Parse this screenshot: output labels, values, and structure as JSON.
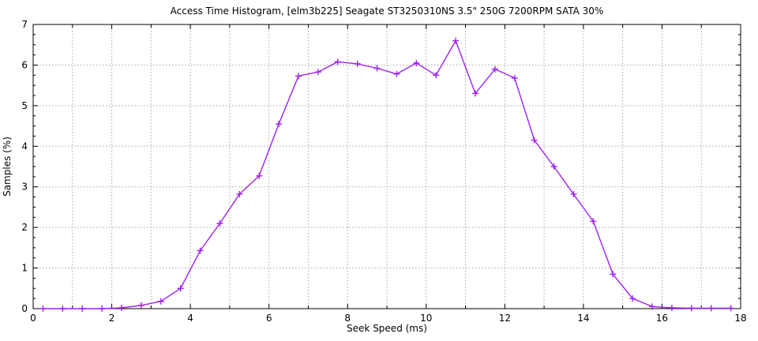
{
  "chart_data": {
    "type": "line",
    "title": "Access Time Histogram, [elm3b225] Seagate ST3250310NS 3.5\" 250G 7200RPM SATA 30%",
    "xlabel": "Seek Speed (ms)",
    "ylabel": "Samples (%)",
    "xlim": [
      0,
      18
    ],
    "ylim": [
      0,
      7
    ],
    "xticks_labeled": [
      0,
      2,
      4,
      6,
      8,
      10,
      12,
      14,
      16,
      18
    ],
    "xticks_unlabeled": [
      1,
      3,
      5,
      7,
      9,
      11,
      13,
      15,
      17
    ],
    "yticks_labeled": [
      0,
      1,
      2,
      3,
      4,
      5,
      6,
      7
    ],
    "yminor_step": 0.25,
    "xgrid": [
      1,
      2,
      3,
      4,
      5,
      6,
      7,
      8,
      9,
      10,
      11,
      12,
      13,
      14,
      15,
      16,
      17
    ],
    "ygrid": [
      1,
      2,
      3,
      4,
      5,
      6
    ],
    "grid_on": true,
    "legend": "none",
    "colors": {
      "series": "#a020f0",
      "grid": "#a8a8a8",
      "axis": "#000000",
      "text": "#000000",
      "background": "#ffffff"
    },
    "series": [
      {
        "name": "samples",
        "marker": "plus",
        "x": [
          0.25,
          0.75,
          1.25,
          1.75,
          2.25,
          2.75,
          3.25,
          3.75,
          4.25,
          4.75,
          5.25,
          5.75,
          6.25,
          6.75,
          7.25,
          7.75,
          8.25,
          8.75,
          9.25,
          9.75,
          10.25,
          10.75,
          11.25,
          11.75,
          12.25,
          12.75,
          13.25,
          13.75,
          14.25,
          14.75,
          15.25,
          15.75,
          16.25,
          16.75,
          17.25,
          17.75
        ],
        "y": [
          0,
          0,
          0,
          0,
          0.02,
          0.08,
          0.18,
          0.5,
          1.43,
          2.1,
          2.82,
          3.27,
          4.55,
          5.73,
          5.83,
          6.08,
          6.03,
          5.92,
          5.78,
          6.05,
          5.75,
          6.6,
          5.3,
          5.9,
          5.68,
          4.15,
          3.5,
          2.82,
          2.15,
          0.85,
          0.25,
          0.05,
          0.02,
          0.01,
          0.01,
          0.01
        ]
      }
    ]
  }
}
